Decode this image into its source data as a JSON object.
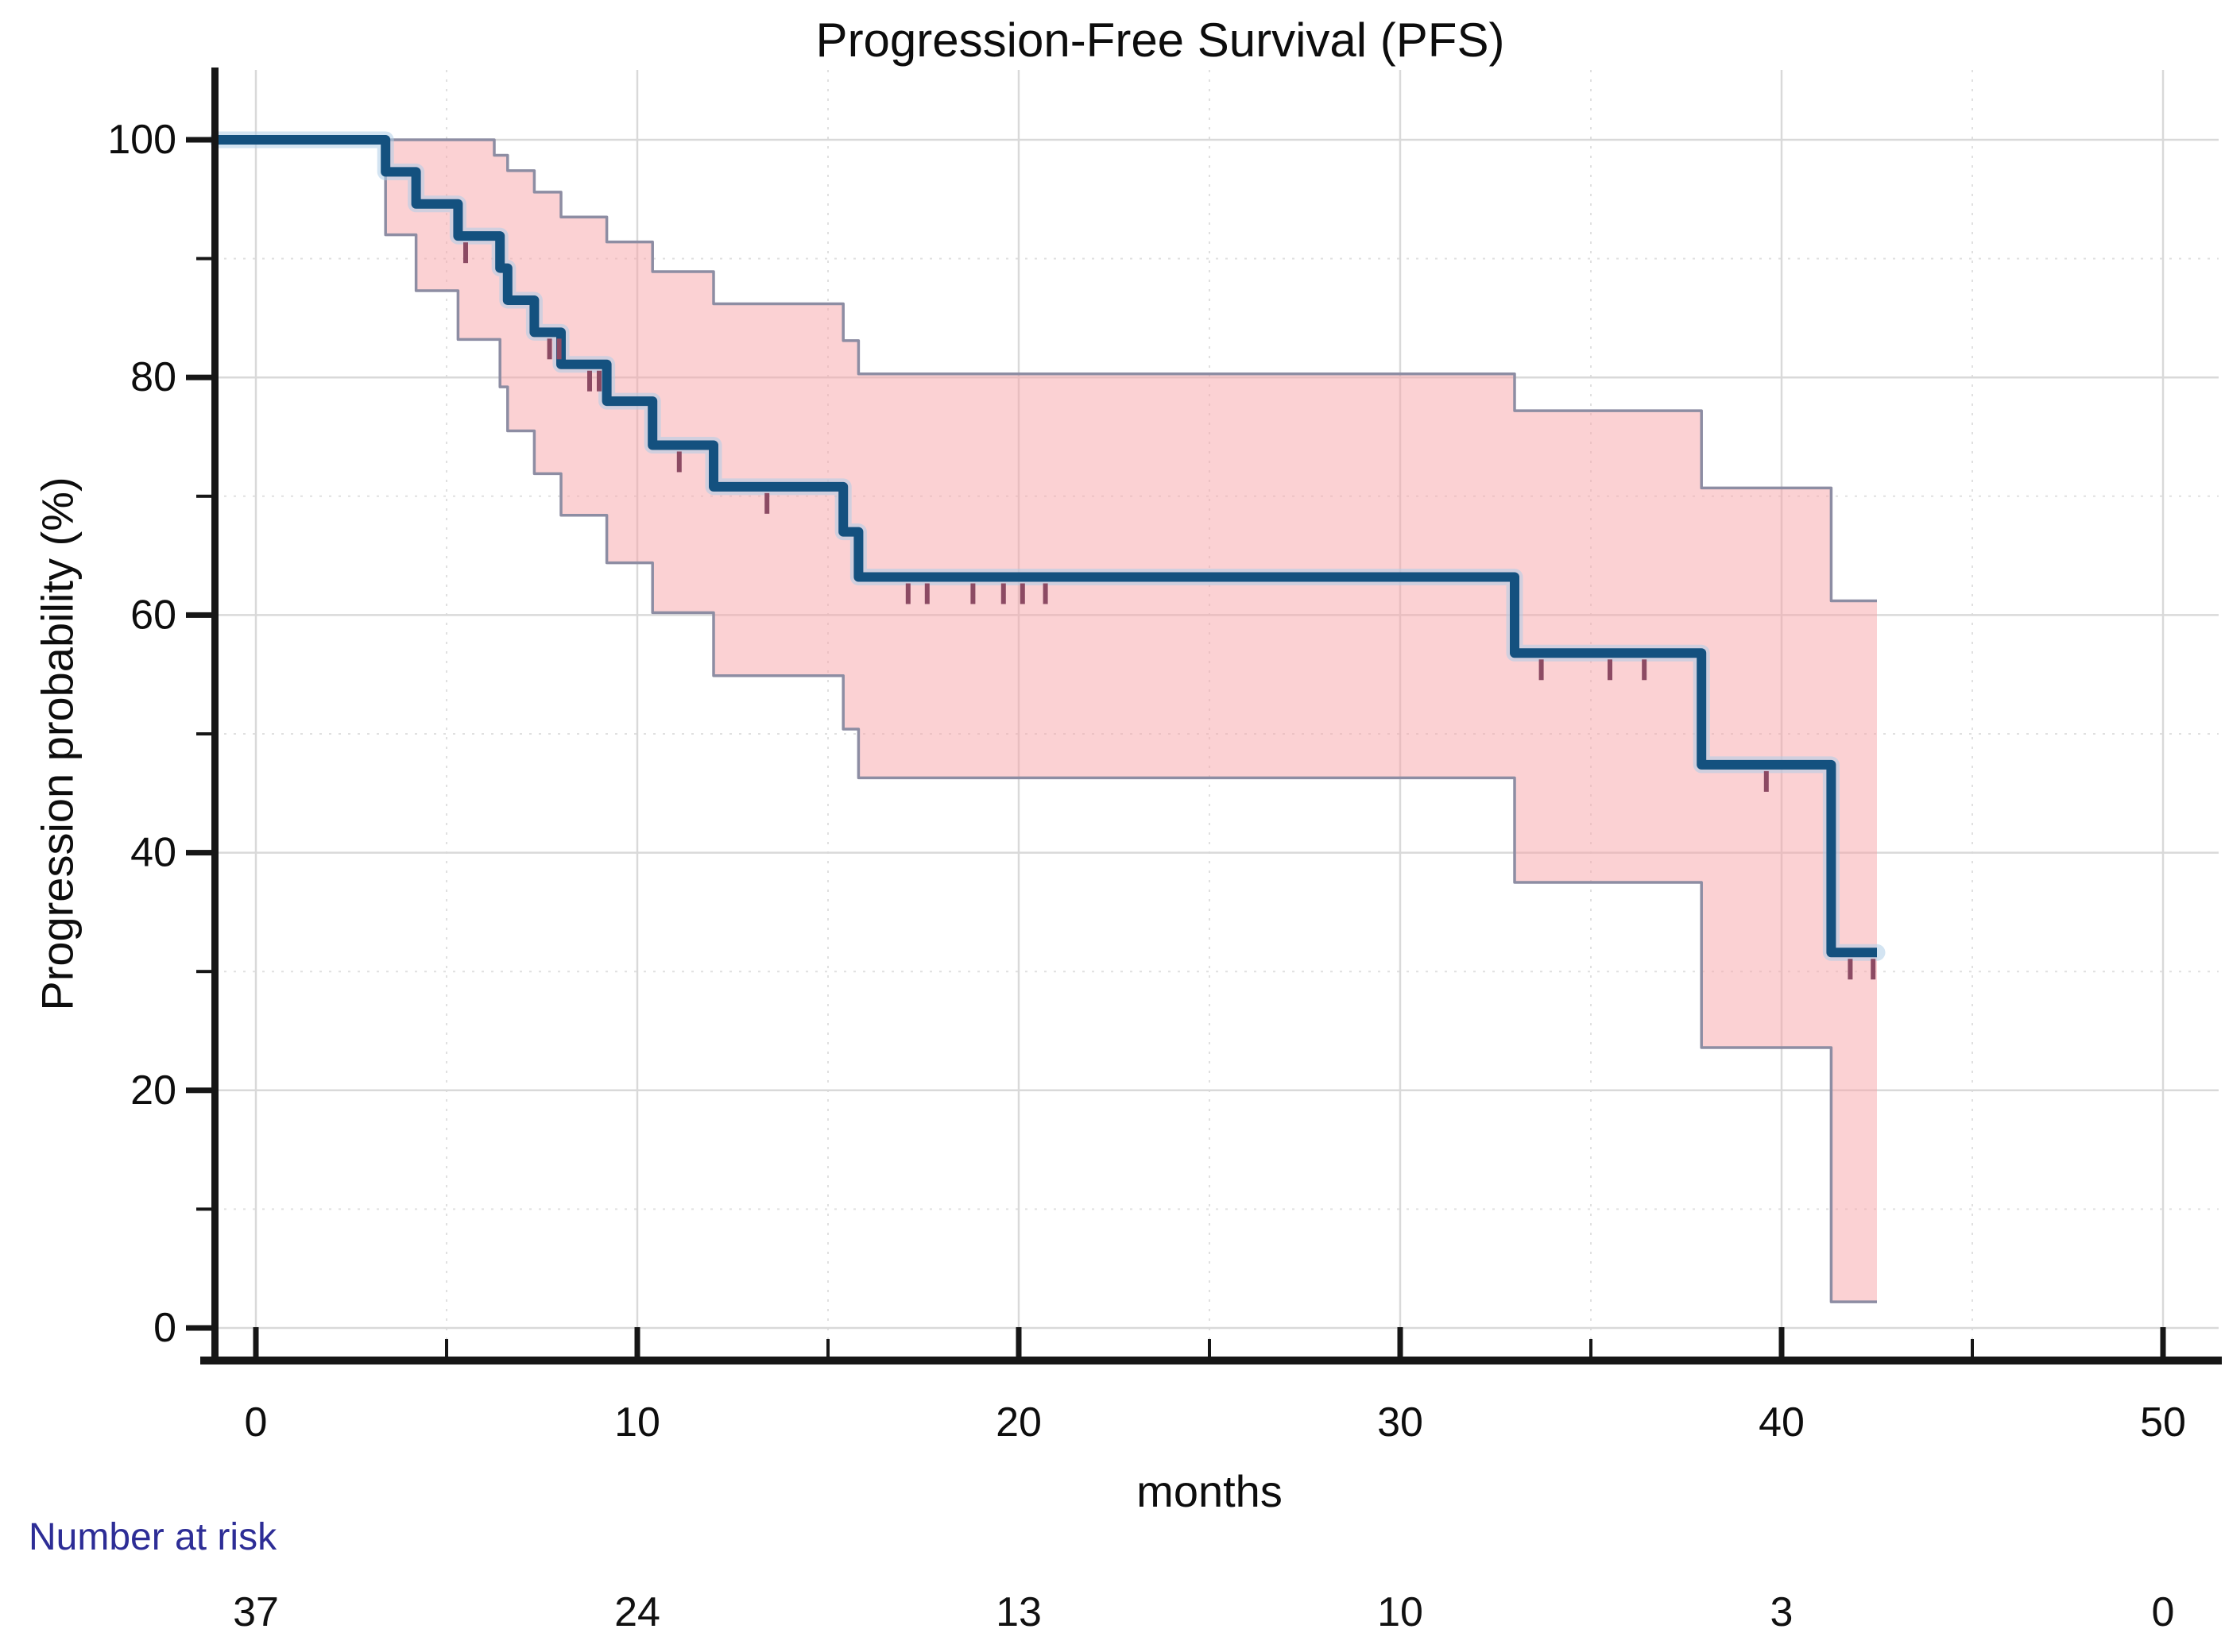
{
  "chart_data": {
    "type": "line",
    "subtype": "kaplan-meier-step-with-confidence-band",
    "title": "Progression-Free Survival (PFS)",
    "xlabel": "months",
    "ylabel": "Progression probability (%)",
    "xlim": [
      0,
      50
    ],
    "ylim": [
      0,
      100
    ],
    "x_major_ticks": [
      0,
      10,
      20,
      30,
      40,
      50
    ],
    "x_minor_ticks": [
      5,
      15,
      25,
      35,
      45
    ],
    "y_major_ticks": [
      100,
      80,
      60,
      40,
      20,
      0
    ],
    "y_minor_ticks": [
      90,
      70,
      50,
      30,
      10
    ],
    "grid": "major solid light gray, minor dotted fainter; legend none",
    "end_time": 42.5,
    "series": [
      {
        "name": "PFS Kaplan-Meier estimate",
        "role": "main",
        "steps": [
          [
            0,
            100
          ],
          [
            3.4,
            97.3
          ],
          [
            4.2,
            94.6
          ],
          [
            5.3,
            91.9
          ],
          [
            6.4,
            89.2
          ],
          [
            6.6,
            86.5
          ],
          [
            7.3,
            83.8
          ],
          [
            8.0,
            81.1
          ],
          [
            9.2,
            78.0
          ],
          [
            10.4,
            74.3
          ],
          [
            12.0,
            70.8
          ],
          [
            15.4,
            67.0
          ],
          [
            15.8,
            63.2
          ],
          [
            33.0,
            56.8
          ],
          [
            37.9,
            47.4
          ],
          [
            41.3,
            31.6
          ]
        ]
      },
      {
        "name": "95% CI upper bound",
        "role": "ci-upper",
        "steps": [
          [
            0,
            100
          ],
          [
            6.25,
            98.7
          ],
          [
            6.6,
            97.4
          ],
          [
            7.3,
            95.6
          ],
          [
            8.0,
            93.5
          ],
          [
            9.2,
            91.4
          ],
          [
            10.4,
            88.9
          ],
          [
            12.0,
            86.2
          ],
          [
            15.4,
            83.1
          ],
          [
            15.8,
            80.3
          ],
          [
            33.0,
            77.2
          ],
          [
            37.9,
            70.7
          ],
          [
            41.3,
            61.2
          ]
        ]
      },
      {
        "name": "95% CI lower bound",
        "role": "ci-lower",
        "steps": [
          [
            0,
            100
          ],
          [
            3.4,
            92.0
          ],
          [
            4.2,
            87.3
          ],
          [
            5.3,
            83.2
          ],
          [
            6.4,
            79.2
          ],
          [
            6.6,
            75.5
          ],
          [
            7.3,
            71.9
          ],
          [
            8.0,
            68.4
          ],
          [
            9.2,
            64.4
          ],
          [
            10.4,
            60.2
          ],
          [
            12.0,
            54.9
          ],
          [
            15.4,
            50.4
          ],
          [
            15.8,
            46.3
          ],
          [
            33.0,
            37.5
          ],
          [
            37.9,
            23.6
          ],
          [
            41.3,
            2.2
          ]
        ]
      }
    ],
    "censor_marks": [
      [
        5.5,
        91.9
      ],
      [
        7.7,
        83.8
      ],
      [
        7.95,
        83.8
      ],
      [
        8.75,
        81.1
      ],
      [
        9.0,
        81.1
      ],
      [
        11.1,
        74.3
      ],
      [
        13.4,
        70.8
      ],
      [
        17.1,
        63.2
      ],
      [
        17.6,
        63.2
      ],
      [
        18.8,
        63.2
      ],
      [
        19.6,
        63.2
      ],
      [
        20.1,
        63.2
      ],
      [
        20.7,
        63.2
      ],
      [
        33.7,
        56.8
      ],
      [
        35.5,
        56.8
      ],
      [
        36.4,
        56.8
      ],
      [
        39.6,
        47.4
      ],
      [
        41.8,
        31.6
      ],
      [
        42.4,
        31.6
      ]
    ],
    "risk_table": {
      "label": "Number at risk",
      "times": [
        0,
        10,
        20,
        30,
        40,
        50
      ],
      "values": [
        "37",
        "24",
        "13",
        "10",
        "3",
        "0"
      ]
    },
    "colors": {
      "km_line": "#14517f",
      "km_halo": "#aecde8",
      "band_fill": "#f7a3a7",
      "band_edge": "#8d8da3",
      "censor": "#8c4a63",
      "grid_major": "#d9d9d9",
      "grid_minor": "#e0e0e0",
      "axis": "#161616",
      "text": "#0d0d0d",
      "risk_label_text": "#2d2d96"
    }
  }
}
